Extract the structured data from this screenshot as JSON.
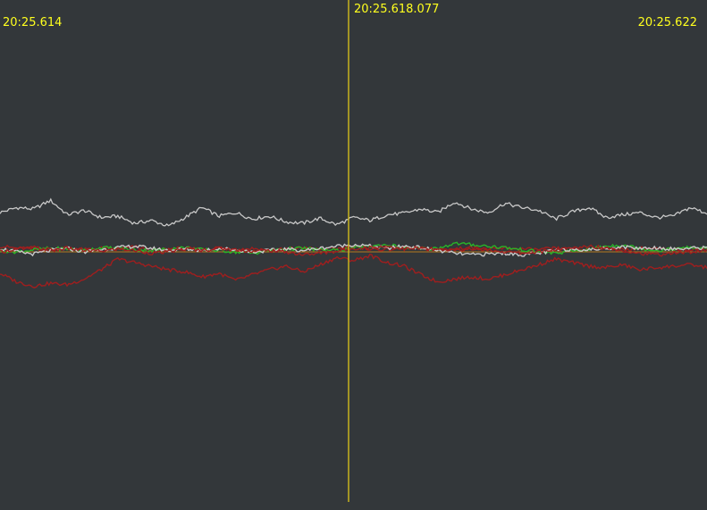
{
  "timeline": {
    "start_label": "20:25.614",
    "cursor_label": "20:25.618.077",
    "end_label": "20:25.622"
  },
  "colors": {
    "background": "#33373a",
    "cursor": "#c8b41e",
    "label": "#ffff1e",
    "zero_line": "#b4781e",
    "trace_white": "#c8c8c8",
    "trace_red": "#a01e1e",
    "trace_green": "#28b428"
  },
  "chart_data": {
    "type": "line",
    "x_range": [
      "20:25.614",
      "20:25.622"
    ],
    "series": [
      {
        "values": [
          0.55,
          0.62,
          0.6,
          0.72,
          0.52,
          0.58,
          0.48,
          0.5,
          0.4,
          0.44,
          0.36,
          0.48,
          0.62,
          0.5,
          0.55,
          0.46,
          0.5,
          0.42,
          0.4,
          0.47,
          0.38,
          0.48,
          0.44,
          0.52,
          0.54,
          0.6,
          0.55,
          0.7,
          0.6,
          0.55,
          0.68,
          0.62,
          0.58,
          0.46,
          0.56,
          0.62,
          0.48,
          0.52,
          0.55,
          0.48,
          0.5,
          0.62,
          0.54
        ]
      },
      {
        "values": [
          0.08,
          0.05,
          0.04,
          0.02,
          0.06,
          0.03,
          0.05,
          0.04,
          0.07,
          0.02,
          0.04,
          0.05,
          0.03,
          0.06,
          0.03,
          0.05,
          0.02,
          0.04,
          0.06,
          0.03,
          0.05,
          0.08,
          0.04,
          0.03,
          0.06,
          0.05,
          0.02,
          0.04,
          0.06,
          0.03,
          0.05,
          0.04,
          0.03,
          0.05,
          0.02,
          0.04,
          0.06,
          0.03,
          0.05,
          0.04,
          0.03,
          0.04,
          0.05
        ]
      },
      {
        "values": [
          -0.3,
          -0.42,
          -0.48,
          -0.44,
          -0.46,
          -0.38,
          -0.25,
          -0.1,
          -0.15,
          -0.2,
          -0.25,
          -0.28,
          -0.35,
          -0.3,
          -0.4,
          -0.32,
          -0.25,
          -0.2,
          -0.28,
          -0.18,
          -0.08,
          -0.12,
          -0.05,
          -0.15,
          -0.2,
          -0.32,
          -0.42,
          -0.38,
          -0.35,
          -0.38,
          -0.32,
          -0.25,
          -0.18,
          -0.1,
          -0.15,
          -0.2,
          -0.22,
          -0.18,
          -0.25,
          -0.22,
          -0.2,
          -0.18,
          -0.22
        ]
      },
      {
        "values": [
          0.02,
          0.0,
          0.03,
          0.05,
          0.04,
          0.02,
          0.06,
          0.05,
          0.03,
          0.02,
          0.04,
          0.06,
          0.03,
          0.02,
          0.0,
          -0.02,
          0.02,
          0.04,
          0.05,
          0.03,
          0.02,
          0.05,
          0.08,
          0.1,
          0.06,
          0.04,
          0.05,
          0.12,
          0.1,
          0.08,
          0.06,
          0.03,
          0.0,
          -0.02,
          0.01,
          0.04,
          0.08,
          0.1,
          0.05,
          0.02,
          0.04,
          0.06,
          0.05
        ]
      },
      {
        "values": [
          0.05,
          0.0,
          -0.03,
          0.02,
          0.05,
          0.0,
          0.03,
          0.06,
          0.08,
          0.05,
          0.02,
          0.04,
          0.02,
          0.05,
          0.03,
          0.0,
          0.02,
          0.04,
          0.02,
          0.05,
          0.08,
          0.1,
          0.08,
          0.05,
          0.08,
          0.06,
          0.02,
          -0.02,
          -0.04,
          -0.03,
          -0.02,
          -0.04,
          -0.02,
          0.02,
          0.04,
          0.03,
          0.05,
          0.07,
          0.05,
          0.06,
          0.04,
          0.05,
          0.06
        ]
      },
      {
        "values": [
          0.0,
          0.04,
          0.06,
          0.03,
          0.05,
          0.02,
          0.01,
          0.04,
          0.02,
          -0.02,
          0.0,
          0.04,
          0.02,
          0.05,
          0.03,
          0.01,
          0.02,
          0.0,
          -0.04,
          -0.02,
          0.01,
          0.05,
          0.06,
          0.08,
          0.04,
          0.05,
          0.03,
          0.02,
          0.05,
          0.03,
          0.0,
          -0.02,
          0.0,
          0.03,
          0.05,
          0.08,
          0.06,
          0.02,
          -0.02,
          -0.04,
          -0.02,
          0.0,
          0.02
        ]
      }
    ],
    "cursor_x": "20:25.618.077"
  }
}
